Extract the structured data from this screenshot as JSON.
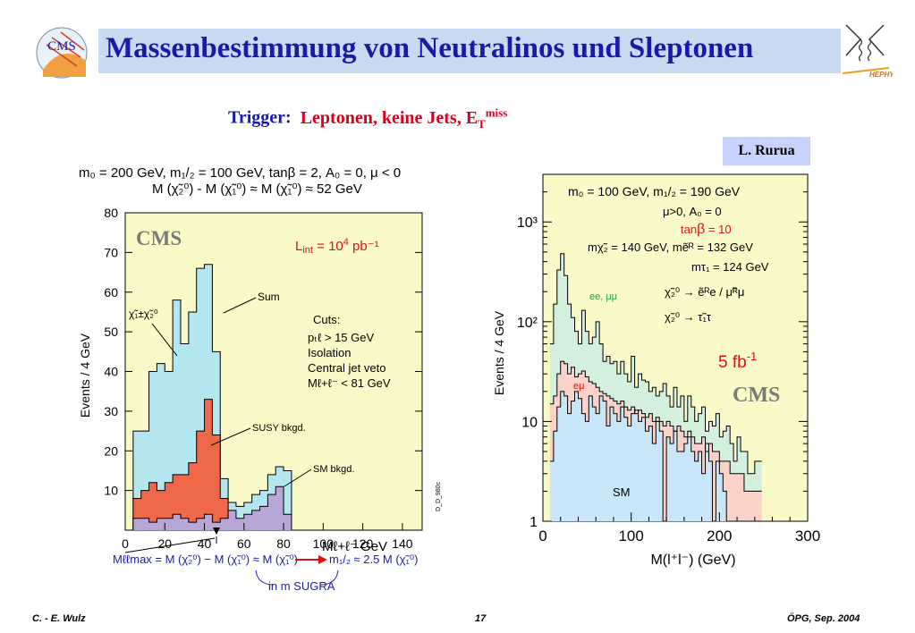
{
  "header": {
    "title": "Massenbestimmung von Neutralinos und Sleptonen",
    "logo_left": "CMS",
    "logo_right": "HEPHY",
    "colors": {
      "title": "#1a1aa8",
      "bar": "#c9daf0"
    }
  },
  "trigger": {
    "label": "Trigger:",
    "value": "Leptonen, keine Jets, E",
    "sub": "T",
    "sup": "miss"
  },
  "credit": "L. Rurua",
  "footer": {
    "left": "C. - E. Wulz",
    "center": "17",
    "right": "ÖPG, Sep. 2004"
  },
  "chart_data": [
    {
      "type": "bar",
      "header_line1": "m₀ = 200 GeV, m₁/₂ = 100 GeV,   tanβ = 2, A₀ = 0, μ < 0",
      "header_line2": "M (χ̃₂⁰) - M (χ̃₁⁰) ≈ M (χ̃₁⁰) ≈ 52 GeV",
      "xlabel": "Mℓ+ℓ⁻ GeV",
      "ylabel": "Events / 4 GeV",
      "xlim": [
        0,
        150
      ],
      "ylim": [
        0,
        80
      ],
      "xticks": [
        0,
        20,
        40,
        60,
        80,
        100,
        120,
        140
      ],
      "yticks": [
        10,
        20,
        30,
        40,
        50,
        60,
        70,
        80
      ],
      "bin_edges": [
        4,
        8,
        12,
        16,
        20,
        24,
        28,
        32,
        36,
        40,
        44,
        48,
        52,
        56,
        60,
        64,
        68,
        72,
        76,
        80,
        84
      ],
      "series": [
        {
          "name": "Sum",
          "color": "#b4e6f0",
          "values": [
            25,
            25,
            40,
            42,
            40,
            58,
            47,
            55,
            66,
            67,
            45,
            13,
            7,
            6,
            7,
            9,
            10,
            14,
            16,
            15
          ]
        },
        {
          "name": "SUSY bkgd.",
          "color": "#f0684a",
          "values": [
            8,
            10,
            12,
            10,
            12,
            14,
            14,
            17,
            25,
            33,
            24,
            8,
            1,
            0,
            0,
            0,
            0,
            0,
            0,
            0
          ]
        },
        {
          "name": "SM bkgd.",
          "color": "#b8a6d6",
          "values": [
            3,
            3,
            2,
            3,
            3,
            4,
            3,
            2,
            3,
            4,
            2,
            3,
            5,
            3,
            4,
            5,
            6,
            9,
            11,
            4
          ]
        }
      ],
      "labels": {
        "brand": "CMS",
        "lumi": "L",
        "lumi_sub": "int",
        "lumi_val": " = 10",
        "lumi_sup": "4",
        "lumi_unit": " pb⁻¹",
        "chi_label": "χ̃₁±χ̃₂⁰",
        "cuts": [
          "Cuts:",
          "pₜℓ > 15 GeV",
          "Isolation",
          "Central jet veto",
          "Mℓ+ℓ⁻ < 81 GeV"
        ],
        "side_code": "D_D_980c",
        "formula": "Mℓℓmax = M (χ̃₂⁰) − M (χ̃₁⁰) ≈ M (χ̃₁⁰)",
        "formula_right": "m₁/₂ ≈ 2.5 M (χ̃₁⁰)",
        "sugra": "in m SUGRA"
      },
      "colors": {
        "frame": "#fafac8"
      }
    },
    {
      "type": "bar",
      "xlabel": "M(l⁺l⁻) (GeV)",
      "ylabel": "Events / 4 GeV",
      "xlim": [
        0,
        300
      ],
      "ylim": [
        1,
        3000
      ],
      "yscale": "log",
      "xticks": [
        0,
        100,
        200,
        300
      ],
      "yticks": [
        1,
        10,
        100,
        1000
      ],
      "ytick_labels": [
        "1",
        "10",
        "10²",
        "10³"
      ],
      "bin_width": 4,
      "bin_start": 8,
      "series": [
        {
          "name": "ee, μμ",
          "color": "#d2f0dc",
          "values": [
            60,
            150,
            330,
            480,
            290,
            150,
            110,
            80,
            60,
            130,
            80,
            60,
            70,
            100,
            60,
            40,
            45,
            38,
            40,
            30,
            40,
            30,
            25,
            45,
            22,
            30,
            26,
            25,
            20,
            22,
            18,
            20,
            24,
            18,
            14,
            22,
            14,
            18,
            10,
            18,
            14,
            10,
            12,
            14,
            8,
            10,
            9,
            12,
            7,
            8,
            9,
            6,
            4,
            7,
            5,
            5,
            3,
            3,
            4,
            4
          ]
        },
        {
          "name": "eμ",
          "color": "#fad2c8",
          "values": [
            15,
            18,
            30,
            40,
            38,
            30,
            35,
            28,
            30,
            32,
            28,
            25,
            24,
            22,
            20,
            19,
            18,
            17,
            16,
            15,
            16,
            14,
            13,
            14,
            12,
            13,
            12,
            11,
            12,
            10,
            11,
            10,
            9,
            10,
            9,
            8,
            9,
            8,
            7,
            8,
            7,
            6,
            6,
            7,
            5,
            6,
            5,
            5,
            4,
            4,
            4,
            3,
            3,
            3,
            3,
            2,
            2,
            2,
            2,
            2
          ]
        },
        {
          "name": "SM",
          "color": "#c8e6f8",
          "values": [
            4,
            8,
            14,
            20,
            18,
            12,
            16,
            20,
            17,
            12,
            10,
            18,
            14,
            12,
            18,
            16,
            9,
            14,
            12,
            10,
            14,
            11,
            9,
            12,
            13,
            10,
            11,
            8,
            9,
            6,
            10,
            8,
            1,
            7,
            6,
            8,
            5,
            5,
            6,
            7,
            5,
            4,
            5,
            3,
            6,
            4,
            1,
            4,
            3,
            2,
            1,
            1,
            1,
            1,
            1,
            1,
            1,
            1,
            1,
            1
          ]
        }
      ],
      "labels": {
        "brand": "CMS",
        "lumi": "5 fb",
        "lumi_sup": "-1",
        "line1": "m₀ = 100 GeV, m₁/₂ = 190 GeV",
        "line2": "μ>0, A₀ = 0",
        "line3_prefix": "tan",
        "line3_beta": "β",
        "line3_val": " = 10",
        "line4": "mχ̃₂ = 140 GeV, mẽᴿ = 132 GeV",
        "line5": "mτ₁ = 124 GeV",
        "decay1": "χ̃₂⁰ → ẽᴿe / μ̃ᴿμ",
        "decay2": "χ̃₂⁰ → τ̃₁τ",
        "ee_mm": "ee, μμ",
        "emu": "eμ",
        "sm": "SM"
      },
      "colors": {
        "frame": "#fafac8",
        "lumi": "#e01010"
      }
    }
  ]
}
